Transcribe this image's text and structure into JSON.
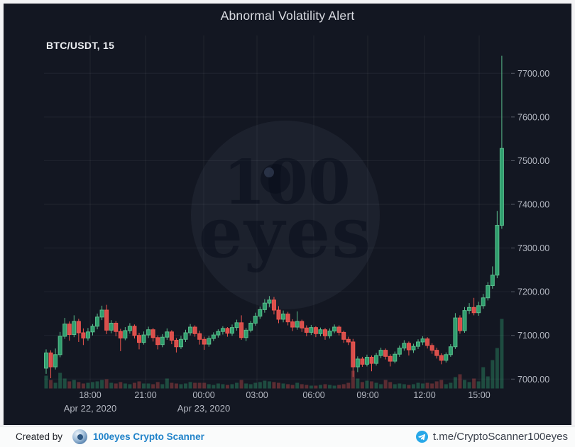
{
  "header": {
    "title": "Abnormal Volatility Alert",
    "symbol": "BTC/USDT, 15"
  },
  "watermark": {
    "line1": "100",
    "line2": "eyes"
  },
  "footer": {
    "created_by": "Created by",
    "brand": "100eyes Crypto Scanner",
    "telegram_link": "t.me/CryptoScanner100eyes"
  },
  "chart_data": {
    "type": "candlestick",
    "title": "Abnormal Volatility Alert",
    "symbol": "BTC/USDT",
    "interval_minutes": 15,
    "start_time": "2020-04-22 15:45",
    "x_ticks": [
      {
        "label": "18:00",
        "x": 127
      },
      {
        "label": "21:00",
        "x": 205
      },
      {
        "label": "00:00",
        "x": 287
      },
      {
        "label": "03:00",
        "x": 362
      },
      {
        "label": "06:00",
        "x": 442
      },
      {
        "label": "09:00",
        "x": 518
      },
      {
        "label": "12:00",
        "x": 598
      },
      {
        "label": "15:00",
        "x": 675
      }
    ],
    "date_labels": [
      {
        "label": "Apr 22, 2020",
        "x": 127
      },
      {
        "label": "Apr 23, 2020",
        "x": 287
      }
    ],
    "y_ticks": [
      {
        "label": "7700.00",
        "price": 7700
      },
      {
        "label": "7600.00",
        "price": 7600
      },
      {
        "label": "7500.00",
        "price": 7500
      },
      {
        "label": "7400.00",
        "price": 7400
      },
      {
        "label": "7300.00",
        "price": 7300
      },
      {
        "label": "7200.00",
        "price": 7200
      },
      {
        "label": "7100.00",
        "price": 7100
      },
      {
        "label": "7000.00",
        "price": 7000
      }
    ],
    "y_range": [
      7000,
      7750
    ],
    "grid": true,
    "colors": {
      "background": "#131722",
      "up": "#2f9e6e",
      "up_border": "#5abd8c",
      "down": "#d94f4c",
      "down_border": "#f0564f",
      "vol_up": "rgba(47,158,110,0.40)",
      "vol_down": "rgba(226,83,80,0.35)",
      "grid": "rgba(255,255,255,0.06)",
      "axis_text": "#b4b8c2"
    },
    "candles_format": [
      "open",
      "high",
      "low",
      "close",
      "volume_rel"
    ],
    "candles": [
      [
        7025,
        7068,
        7012,
        7060,
        18
      ],
      [
        7060,
        7066,
        7002,
        7028,
        12
      ],
      [
        7028,
        7070,
        7022,
        7056,
        8
      ],
      [
        7056,
        7108,
        7050,
        7098,
        22
      ],
      [
        7098,
        7140,
        7092,
        7126,
        14
      ],
      [
        7126,
        7132,
        7088,
        7102,
        10
      ],
      [
        7102,
        7146,
        7096,
        7132,
        12
      ],
      [
        7132,
        7138,
        7085,
        7106,
        9
      ],
      [
        7106,
        7116,
        7078,
        7094,
        7
      ],
      [
        7094,
        7117,
        7088,
        7108,
        8
      ],
      [
        7108,
        7126,
        7100,
        7121,
        9
      ],
      [
        7121,
        7150,
        7114,
        7142,
        10
      ],
      [
        7142,
        7168,
        7135,
        7158,
        12
      ],
      [
        7158,
        7170,
        7103,
        7112,
        13
      ],
      [
        7112,
        7135,
        7105,
        7128,
        8
      ],
      [
        7128,
        7133,
        7098,
        7109,
        7
      ],
      [
        7109,
        7115,
        7064,
        7094,
        9
      ],
      [
        7094,
        7119,
        7089,
        7111,
        7
      ],
      [
        7111,
        7128,
        7104,
        7121,
        6
      ],
      [
        7121,
        7125,
        7093,
        7100,
        8
      ],
      [
        7100,
        7106,
        7068,
        7084,
        10
      ],
      [
        7084,
        7109,
        7079,
        7101,
        7
      ],
      [
        7101,
        7120,
        7094,
        7113,
        7
      ],
      [
        7113,
        7117,
        7086,
        7095,
        6
      ],
      [
        7095,
        7100,
        7068,
        7079,
        9
      ],
      [
        7079,
        7103,
        7073,
        7096,
        6
      ],
      [
        7096,
        7116,
        7090,
        7108,
        14
      ],
      [
        7108,
        7112,
        7080,
        7089,
        8
      ],
      [
        7089,
        7094,
        7061,
        7074,
        7
      ],
      [
        7074,
        7099,
        7069,
        7091,
        6
      ],
      [
        7091,
        7113,
        7085,
        7106,
        7
      ],
      [
        7106,
        7126,
        7100,
        7119,
        9
      ],
      [
        7119,
        7123,
        7097,
        7104,
        8
      ],
      [
        7104,
        7111,
        7079,
        7091,
        8
      ],
      [
        7091,
        7097,
        7067,
        7080,
        8
      ],
      [
        7080,
        7099,
        7074,
        7093,
        6
      ],
      [
        7093,
        7107,
        7087,
        7101,
        5
      ],
      [
        7101,
        7114,
        7095,
        7109,
        7
      ],
      [
        7109,
        7121,
        7102,
        7116,
        6
      ],
      [
        7116,
        7119,
        7097,
        7105,
        5
      ],
      [
        7105,
        7125,
        7099,
        7118,
        6
      ],
      [
        7118,
        7136,
        7111,
        7129,
        8
      ],
      [
        7129,
        7146,
        7090,
        7095,
        12
      ],
      [
        7095,
        7117,
        7087,
        7112,
        7
      ],
      [
        7112,
        7133,
        7107,
        7128,
        6
      ],
      [
        7128,
        7152,
        7122,
        7144,
        8
      ],
      [
        7144,
        7166,
        7138,
        7159,
        9
      ],
      [
        7159,
        7183,
        7152,
        7174,
        11
      ],
      [
        7174,
        7190,
        7165,
        7181,
        10
      ],
      [
        7181,
        7188,
        7148,
        7158,
        9
      ],
      [
        7158,
        7167,
        7128,
        7137,
        8
      ],
      [
        7137,
        7157,
        7130,
        7149,
        7
      ],
      [
        7149,
        7154,
        7123,
        7131,
        6
      ],
      [
        7131,
        7137,
        7110,
        7119,
        5
      ],
      [
        7119,
        7155,
        7113,
        7132,
        8
      ],
      [
        7132,
        7136,
        7108,
        7117,
        6
      ],
      [
        7117,
        7123,
        7098,
        7107,
        5
      ],
      [
        7107,
        7124,
        7101,
        7118,
        4
      ],
      [
        7118,
        7121,
        7096,
        7104,
        4
      ],
      [
        7104,
        7118,
        7098,
        7113,
        5
      ],
      [
        7113,
        7117,
        7090,
        7099,
        6
      ],
      [
        7099,
        7116,
        7093,
        7110,
        5
      ],
      [
        7110,
        7125,
        7105,
        7119,
        4
      ],
      [
        7119,
        7123,
        7100,
        7107,
        5
      ],
      [
        7107,
        7111,
        7083,
        7091,
        6
      ],
      [
        7091,
        7097,
        7078,
        7085,
        8
      ],
      [
        7085,
        7092,
        7005,
        7028,
        25
      ],
      [
        7028,
        7052,
        7016,
        7046,
        14
      ],
      [
        7046,
        7051,
        7028,
        7034,
        9
      ],
      [
        7034,
        7056,
        7029,
        7050,
        11
      ],
      [
        7050,
        7054,
        7018,
        7036,
        10
      ],
      [
        7036,
        7060,
        7031,
        7054,
        8
      ],
      [
        7054,
        7072,
        7048,
        7066,
        6
      ],
      [
        7066,
        7070,
        7045,
        7052,
        12
      ],
      [
        7052,
        7057,
        7029,
        7041,
        9
      ],
      [
        7041,
        7063,
        7036,
        7057,
        6
      ],
      [
        7057,
        7077,
        7051,
        7071,
        7
      ],
      [
        7071,
        7089,
        7065,
        7082,
        6
      ],
      [
        7082,
        7086,
        7054,
        7067,
        5
      ],
      [
        7067,
        7081,
        7060,
        7075,
        6
      ],
      [
        7075,
        7091,
        7069,
        7085,
        8
      ],
      [
        7085,
        7098,
        7078,
        7092,
        7
      ],
      [
        7092,
        7096,
        7070,
        7077,
        8
      ],
      [
        7077,
        7082,
        7058,
        7066,
        7
      ],
      [
        7066,
        7072,
        7047,
        7054,
        10
      ],
      [
        7054,
        7059,
        7034,
        7043,
        12
      ],
      [
        7043,
        7061,
        7038,
        7056,
        6
      ],
      [
        7056,
        7080,
        7051,
        7074,
        8
      ],
      [
        7074,
        7151,
        7069,
        7140,
        16
      ],
      [
        7140,
        7146,
        7104,
        7111,
        20
      ],
      [
        7111,
        7165,
        7106,
        7157,
        12
      ],
      [
        7157,
        7174,
        7149,
        7164,
        9
      ],
      [
        7164,
        7186,
        7146,
        7152,
        14
      ],
      [
        7152,
        7177,
        7145,
        7168,
        10
      ],
      [
        7168,
        7195,
        7161,
        7186,
        30
      ],
      [
        7186,
        7222,
        7180,
        7214,
        17
      ],
      [
        7214,
        7258,
        7207,
        7238,
        40
      ],
      [
        7238,
        7385,
        7231,
        7352,
        57
      ],
      [
        7352,
        7740,
        7344,
        7528,
        98
      ]
    ]
  }
}
